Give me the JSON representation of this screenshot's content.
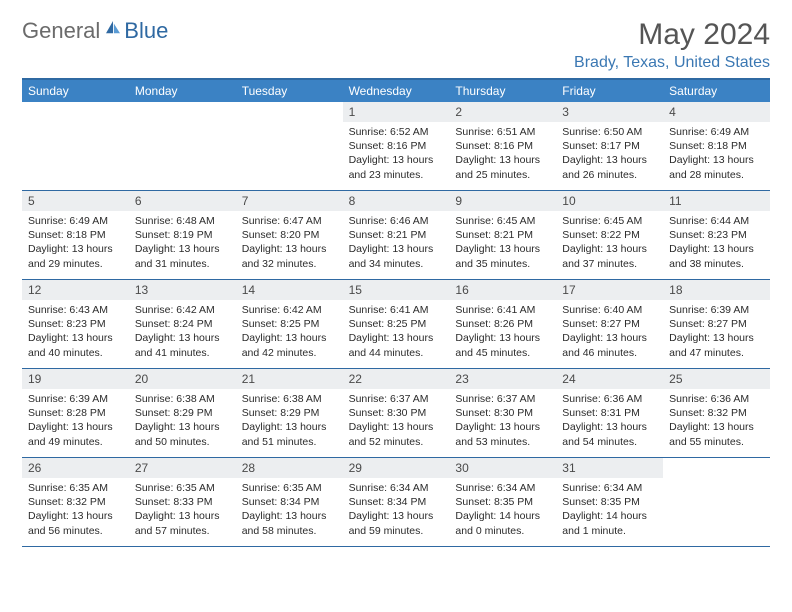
{
  "logo": {
    "general": "General",
    "blue": "Blue"
  },
  "title": "May 2024",
  "location": "Brady, Texas, United States",
  "colors": {
    "accent": "#3b82c4",
    "accent_dark": "#2f69a2",
    "logo_gray": "#6b6b6b",
    "day_header_bg": "#eceef0",
    "text": "#2b2b2b"
  },
  "daysOfWeek": [
    "Sunday",
    "Monday",
    "Tuesday",
    "Wednesday",
    "Thursday",
    "Friday",
    "Saturday"
  ],
  "weeks": [
    [
      {
        "n": "",
        "sr": "",
        "ss": "",
        "dl": ""
      },
      {
        "n": "",
        "sr": "",
        "ss": "",
        "dl": ""
      },
      {
        "n": "",
        "sr": "",
        "ss": "",
        "dl": ""
      },
      {
        "n": "1",
        "sr": "6:52 AM",
        "ss": "8:16 PM",
        "dl": "13 hours and 23 minutes."
      },
      {
        "n": "2",
        "sr": "6:51 AM",
        "ss": "8:16 PM",
        "dl": "13 hours and 25 minutes."
      },
      {
        "n": "3",
        "sr": "6:50 AM",
        "ss": "8:17 PM",
        "dl": "13 hours and 26 minutes."
      },
      {
        "n": "4",
        "sr": "6:49 AM",
        "ss": "8:18 PM",
        "dl": "13 hours and 28 minutes."
      }
    ],
    [
      {
        "n": "5",
        "sr": "6:49 AM",
        "ss": "8:18 PM",
        "dl": "13 hours and 29 minutes."
      },
      {
        "n": "6",
        "sr": "6:48 AM",
        "ss": "8:19 PM",
        "dl": "13 hours and 31 minutes."
      },
      {
        "n": "7",
        "sr": "6:47 AM",
        "ss": "8:20 PM",
        "dl": "13 hours and 32 minutes."
      },
      {
        "n": "8",
        "sr": "6:46 AM",
        "ss": "8:21 PM",
        "dl": "13 hours and 34 minutes."
      },
      {
        "n": "9",
        "sr": "6:45 AM",
        "ss": "8:21 PM",
        "dl": "13 hours and 35 minutes."
      },
      {
        "n": "10",
        "sr": "6:45 AM",
        "ss": "8:22 PM",
        "dl": "13 hours and 37 minutes."
      },
      {
        "n": "11",
        "sr": "6:44 AM",
        "ss": "8:23 PM",
        "dl": "13 hours and 38 minutes."
      }
    ],
    [
      {
        "n": "12",
        "sr": "6:43 AM",
        "ss": "8:23 PM",
        "dl": "13 hours and 40 minutes."
      },
      {
        "n": "13",
        "sr": "6:42 AM",
        "ss": "8:24 PM",
        "dl": "13 hours and 41 minutes."
      },
      {
        "n": "14",
        "sr": "6:42 AM",
        "ss": "8:25 PM",
        "dl": "13 hours and 42 minutes."
      },
      {
        "n": "15",
        "sr": "6:41 AM",
        "ss": "8:25 PM",
        "dl": "13 hours and 44 minutes."
      },
      {
        "n": "16",
        "sr": "6:41 AM",
        "ss": "8:26 PM",
        "dl": "13 hours and 45 minutes."
      },
      {
        "n": "17",
        "sr": "6:40 AM",
        "ss": "8:27 PM",
        "dl": "13 hours and 46 minutes."
      },
      {
        "n": "18",
        "sr": "6:39 AM",
        "ss": "8:27 PM",
        "dl": "13 hours and 47 minutes."
      }
    ],
    [
      {
        "n": "19",
        "sr": "6:39 AM",
        "ss": "8:28 PM",
        "dl": "13 hours and 49 minutes."
      },
      {
        "n": "20",
        "sr": "6:38 AM",
        "ss": "8:29 PM",
        "dl": "13 hours and 50 minutes."
      },
      {
        "n": "21",
        "sr": "6:38 AM",
        "ss": "8:29 PM",
        "dl": "13 hours and 51 minutes."
      },
      {
        "n": "22",
        "sr": "6:37 AM",
        "ss": "8:30 PM",
        "dl": "13 hours and 52 minutes."
      },
      {
        "n": "23",
        "sr": "6:37 AM",
        "ss": "8:30 PM",
        "dl": "13 hours and 53 minutes."
      },
      {
        "n": "24",
        "sr": "6:36 AM",
        "ss": "8:31 PM",
        "dl": "13 hours and 54 minutes."
      },
      {
        "n": "25",
        "sr": "6:36 AM",
        "ss": "8:32 PM",
        "dl": "13 hours and 55 minutes."
      }
    ],
    [
      {
        "n": "26",
        "sr": "6:35 AM",
        "ss": "8:32 PM",
        "dl": "13 hours and 56 minutes."
      },
      {
        "n": "27",
        "sr": "6:35 AM",
        "ss": "8:33 PM",
        "dl": "13 hours and 57 minutes."
      },
      {
        "n": "28",
        "sr": "6:35 AM",
        "ss": "8:34 PM",
        "dl": "13 hours and 58 minutes."
      },
      {
        "n": "29",
        "sr": "6:34 AM",
        "ss": "8:34 PM",
        "dl": "13 hours and 59 minutes."
      },
      {
        "n": "30",
        "sr": "6:34 AM",
        "ss": "8:35 PM",
        "dl": "14 hours and 0 minutes."
      },
      {
        "n": "31",
        "sr": "6:34 AM",
        "ss": "8:35 PM",
        "dl": "14 hours and 1 minute."
      },
      {
        "n": "",
        "sr": "",
        "ss": "",
        "dl": ""
      }
    ]
  ],
  "labels": {
    "sunrise": "Sunrise: ",
    "sunset": "Sunset: ",
    "daylight": "Daylight: "
  }
}
